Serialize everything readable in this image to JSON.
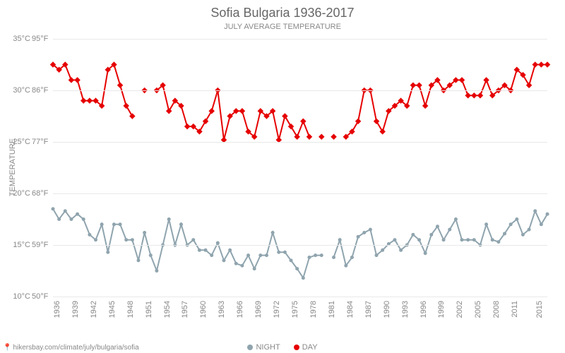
{
  "title": "Sofia Bulgaria 1936-2017",
  "subtitle": "JULY AVERAGE TEMPERATURE",
  "ylabel": "TEMPERATURE",
  "attribution": "hikersbay.com/climate/july/bulgaria/sofia",
  "chart": {
    "type": "line",
    "background_color": "#ffffff",
    "grid_color": "#e8e8e8",
    "text_color": "#888888",
    "ylim_c": [
      10,
      35
    ],
    "yticks_c": [
      10,
      15,
      20,
      25,
      30,
      35
    ],
    "yticks_f": [
      "50°F",
      "59°F",
      "68°F",
      "77°F",
      "86°F",
      "95°F"
    ],
    "years": [
      1936,
      1937,
      1938,
      1939,
      1940,
      1941,
      1942,
      1943,
      1944,
      1945,
      1946,
      1947,
      1948,
      1949,
      1950,
      1951,
      1952,
      1953,
      1954,
      1955,
      1956,
      1957,
      1958,
      1959,
      1960,
      1961,
      1962,
      1963,
      1964,
      1965,
      1966,
      1967,
      1968,
      1969,
      1970,
      1971,
      1972,
      1973,
      1974,
      1975,
      1976,
      1977,
      1978,
      1979,
      1980,
      1981,
      1982,
      1983,
      1984,
      1985,
      1986,
      1987,
      1988,
      1989,
      1990,
      1991,
      1992,
      1993,
      1994,
      1995,
      1996,
      1997,
      1998,
      1999,
      2000,
      2001,
      2002,
      2003,
      2004,
      2005,
      2006,
      2007,
      2008,
      2009,
      2010,
      2011,
      2012,
      2013,
      2014,
      2015,
      2016,
      2017
    ],
    "xtick_labels": [
      1936,
      1939,
      1942,
      1945,
      1948,
      1951,
      1954,
      1957,
      1960,
      1963,
      1966,
      1969,
      1972,
      1975,
      1978,
      1981,
      1984,
      1987,
      1990,
      1993,
      1996,
      1999,
      2002,
      2005,
      2008,
      2011,
      2015
    ],
    "series": [
      {
        "name": "DAY",
        "color": "#e60000",
        "marker": "diamond",
        "marker_size": 6,
        "line_width": 2,
        "values": [
          32.5,
          32.0,
          32.5,
          31.0,
          31.0,
          29.0,
          29.0,
          29.0,
          28.5,
          32.0,
          32.5,
          30.5,
          28.5,
          27.5,
          null,
          30.0,
          null,
          30.0,
          30.5,
          28.0,
          29.0,
          28.5,
          26.5,
          26.5,
          26.0,
          27.0,
          28.0,
          30.0,
          25.2,
          27.5,
          28.0,
          28.0,
          26.0,
          25.5,
          28.0,
          27.5,
          28.0,
          25.2,
          27.5,
          26.5,
          25.5,
          27.0,
          25.5,
          null,
          25.5,
          null,
          25.5,
          null,
          25.5,
          26.0,
          27.0,
          30.0,
          30.0,
          27.0,
          26.0,
          28.0,
          28.5,
          29.0,
          28.5,
          30.5,
          30.5,
          28.5,
          30.5,
          31.0,
          30.0,
          30.5,
          31.0,
          31.0,
          29.5,
          29.5,
          29.5,
          31.0,
          29.5,
          30.0,
          30.5,
          30.0,
          32.0,
          31.5,
          30.5,
          32.5,
          32.5,
          32.5
        ]
      },
      {
        "name": "NIGHT",
        "color": "#8fa4ae",
        "marker": "circle",
        "marker_size": 5,
        "line_width": 2,
        "values": [
          18.5,
          17.5,
          18.3,
          17.5,
          18.0,
          17.5,
          16.0,
          15.5,
          17.0,
          14.3,
          17.0,
          17.0,
          15.5,
          15.5,
          13.5,
          16.2,
          14.0,
          12.5,
          15.0,
          17.5,
          15.0,
          17.0,
          15.0,
          15.5,
          14.5,
          14.5,
          14.0,
          15.2,
          13.5,
          14.5,
          13.2,
          13.0,
          14.0,
          12.7,
          14.0,
          14.0,
          16.2,
          14.3,
          14.3,
          13.5,
          12.7,
          11.8,
          13.8,
          14.0,
          14.0,
          null,
          13.8,
          15.5,
          13.0,
          13.8,
          15.8,
          16.2,
          16.5,
          14.0,
          14.5,
          15.1,
          15.5,
          14.5,
          15.0,
          16.0,
          15.5,
          14.2,
          16.0,
          16.8,
          15.5,
          16.5,
          17.5,
          15.5,
          15.5,
          15.5,
          15.0,
          17.0,
          15.5,
          15.3,
          16.1,
          17.0,
          17.5,
          16.0,
          16.5,
          18.3,
          17.0,
          18.0
        ]
      }
    ]
  },
  "legend": [
    {
      "label": "NIGHT",
      "color": "#8fa4ae"
    },
    {
      "label": "DAY",
      "color": "#e60000"
    }
  ]
}
